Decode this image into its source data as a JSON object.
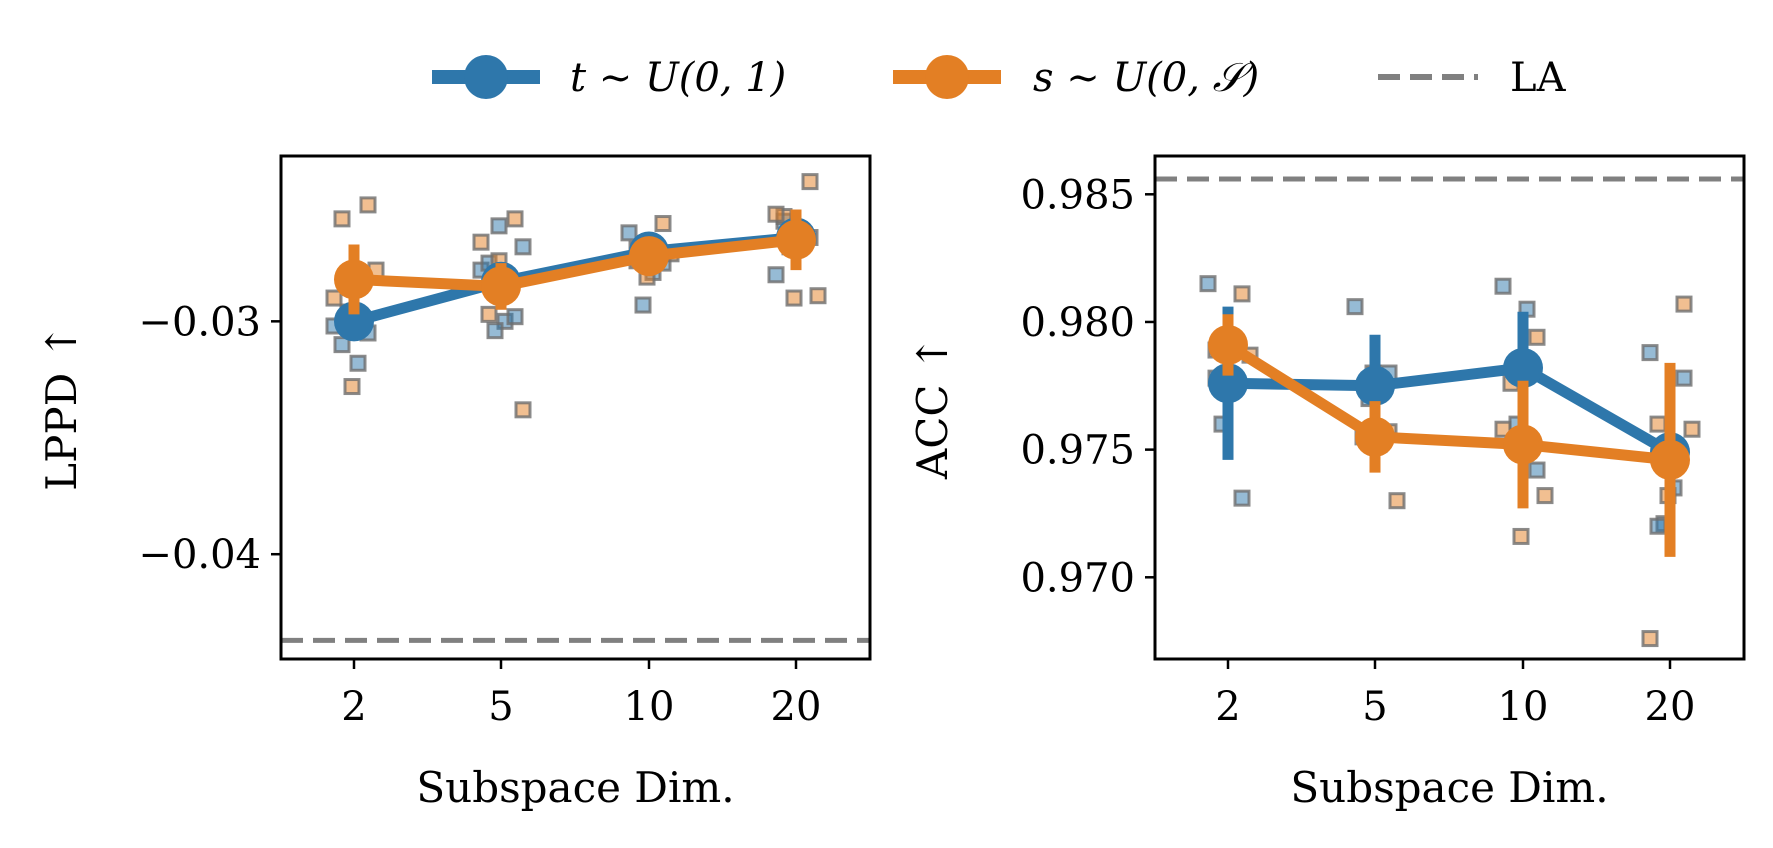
{
  "legend": {
    "entries": [
      {
        "label": "t ∼ U(0, 1)",
        "color": "#2e77ab",
        "style": "line-marker"
      },
      {
        "label": "s ∼ U(0, 𝒮)",
        "color": "#e37f24",
        "style": "line-marker"
      },
      {
        "label": "LA",
        "color": "#808080",
        "style": "dashed"
      }
    ]
  },
  "chart_data": [
    {
      "type": "line",
      "id": "lppd",
      "xlabel": "Subspace Dim.",
      "ylabel": "LPPD ↑",
      "categories": [
        "2",
        "5",
        "10",
        "20"
      ],
      "ylim": [
        -0.0445,
        -0.0229
      ],
      "yticks": [
        -0.03,
        -0.04
      ],
      "ytick_labels": [
        "−0.03",
        "−0.04"
      ],
      "reference_line": {
        "name": "LA",
        "value": -0.0437
      },
      "series": [
        {
          "name": "t ∼ U(0, 1)",
          "color": "#2e77ab",
          "values": [
            -0.03,
            -0.0283,
            -0.027,
            -0.0264
          ],
          "err": [
            0.0006,
            0.0008,
            0.0005,
            0.0004
          ],
          "points": [
            [
              -0.0302,
              -0.0318,
              -0.0296,
              -0.0305,
              -0.031
            ],
            [
              -0.0278,
              -0.03,
              -0.0304,
              -0.0298,
              -0.0275,
              -0.0268,
              -0.0259
            ],
            [
              -0.0262,
              -0.0279,
              -0.0293,
              -0.0275,
              -0.0269
            ],
            [
              -0.028,
              -0.0263,
              -0.0268,
              -0.0264,
              -0.0257
            ]
          ]
        },
        {
          "name": "s ∼ U(0, 𝒮)",
          "color": "#e37f24",
          "values": [
            -0.0282,
            -0.0285,
            -0.0272,
            -0.0265
          ],
          "err": [
            0.0015,
            0.001,
            0.0007,
            0.0013
          ],
          "points": [
            [
              -0.025,
              -0.0256,
              -0.0278,
              -0.0328,
              -0.029
            ],
            [
              -0.0256,
              -0.0297,
              -0.0338,
              -0.0274,
              -0.0266
            ],
            [
              -0.0258,
              -0.0274,
              -0.0271,
              -0.0281
            ],
            [
              -0.024,
              -0.0255,
              -0.0289,
              -0.029,
              -0.0254
            ]
          ]
        }
      ]
    },
    {
      "type": "line",
      "id": "acc",
      "xlabel": "Subspace Dim.",
      "ylabel": "ACC ↑",
      "categories": [
        "2",
        "5",
        "10",
        "20"
      ],
      "ylim": [
        0.9668,
        0.9865
      ],
      "yticks": [
        0.97,
        0.975,
        0.98,
        0.985
      ],
      "ytick_labels": [
        "0.970",
        "0.975",
        "0.980",
        "0.985"
      ],
      "reference_line": {
        "name": "LA",
        "value": 0.9856
      },
      "series": [
        {
          "name": "t ∼ U(0, 1)",
          "color": "#2e77ab",
          "values": [
            0.9776,
            0.9775,
            0.9782,
            0.9749
          ],
          "err": [
            0.003,
            0.002,
            0.0022,
            0.0007
          ],
          "points": [
            [
              0.9815,
              0.979,
              0.976,
              0.9731,
              0.9778
            ],
            [
              0.9806,
              0.9752,
              0.977,
              0.978
            ],
            [
              0.9814,
              0.9805,
              0.976,
              0.9742
            ],
            [
              0.9788,
              0.9735,
              0.9721,
              0.9778,
              0.972
            ]
          ]
        },
        {
          "name": "s ∼ U(0, 𝒮)",
          "color": "#e37f24",
          "values": [
            0.9791,
            0.9755,
            0.9752,
            0.9746
          ],
          "err": [
            0.0012,
            0.0014,
            0.0025,
            0.0038
          ],
          "points": [
            [
              0.9811,
              0.9789,
              0.9787,
              0.9792
            ],
            [
              0.9757,
              0.9755,
              0.973,
              0.978
            ],
            [
              0.9794,
              0.9776,
              0.9732,
              0.9716,
              0.9758
            ],
            [
              0.9807,
              0.976,
              0.9758,
              0.9732,
              0.9676
            ]
          ]
        }
      ]
    }
  ]
}
